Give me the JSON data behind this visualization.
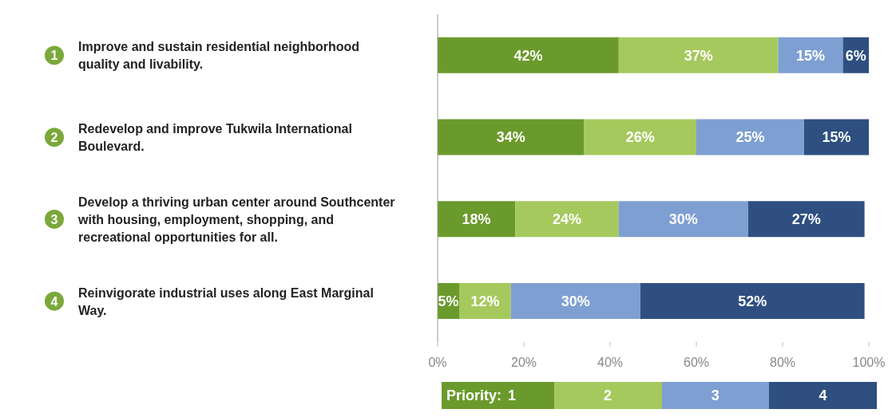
{
  "chart_data": {
    "type": "bar",
    "orientation": "horizontal",
    "stacked": true,
    "categories": [
      "1 Improve and sustain residential neighborhood quality and livability.",
      "2 Redevelop and improve Tukwila International Boulevard.",
      "3 Develop a thriving urban center around Southcenter with housing, employment, shopping, and recreational opportunities for all.",
      "4 Reinvigorate industrial uses along East Marginal Way."
    ],
    "series": [
      {
        "name": "1",
        "color": "#6b9a2c",
        "values": [
          42,
          34,
          18,
          5
        ],
        "value_labels": [
          "42%",
          "34%",
          "18%",
          "5%"
        ]
      },
      {
        "name": "2",
        "color": "#a6c95e",
        "values": [
          37,
          26,
          24,
          12
        ],
        "value_labels": [
          "37%",
          "26%",
          "24%",
          "12%"
        ]
      },
      {
        "name": "3",
        "color": "#7e9fd2",
        "values": [
          15,
          25,
          30,
          30
        ],
        "value_labels": [
          "15%",
          "25%",
          "30%",
          "30%"
        ]
      },
      {
        "name": "4",
        "color": "#2e4f80",
        "values": [
          6,
          15,
          27,
          52
        ],
        "value_labels": [
          "6%",
          "15%",
          "27%",
          "52%"
        ]
      }
    ],
    "xlim": [
      0,
      100
    ],
    "xticks": [
      {
        "value": 0,
        "label": "0%"
      },
      {
        "value": 20,
        "label": "20%"
      },
      {
        "value": 40,
        "label": "40%"
      },
      {
        "value": 60,
        "label": "60%"
      },
      {
        "value": 80,
        "label": "80%"
      },
      {
        "value": 100,
        "label": "100%"
      }
    ],
    "legend": "bottom",
    "legend_title": "Priority:"
  }
}
